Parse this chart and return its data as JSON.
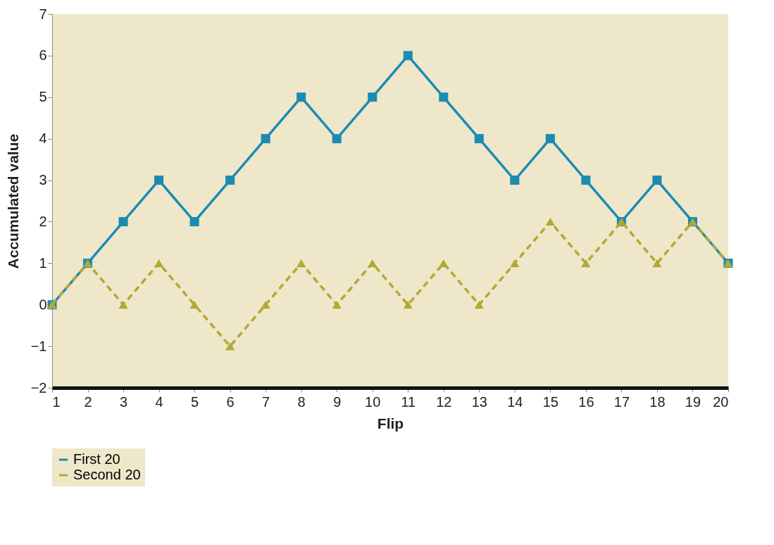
{
  "chart_data": {
    "type": "line",
    "xlabel": "Flip",
    "ylabel": "Accumulated value",
    "x": [
      1,
      2,
      3,
      4,
      5,
      6,
      7,
      8,
      9,
      10,
      11,
      12,
      13,
      14,
      15,
      16,
      17,
      18,
      19,
      20
    ],
    "xlim": [
      1,
      20
    ],
    "xticks": [
      1,
      2,
      3,
      4,
      5,
      6,
      7,
      8,
      9,
      10,
      11,
      12,
      13,
      14,
      15,
      16,
      17,
      18,
      19,
      20
    ],
    "ylim": [
      -2,
      7
    ],
    "yticks": [
      {
        "value": -2,
        "label": "−2"
      },
      {
        "value": -1,
        "label": "−1"
      },
      0,
      1,
      2,
      3,
      4,
      5,
      6,
      7
    ],
    "grid": false,
    "legend": "bottom left",
    "series": [
      {
        "name": "First 20",
        "color": "#1b8bb3",
        "marker": "square",
        "line_style": "solid",
        "values": [
          0,
          1,
          2,
          3,
          2,
          3,
          4,
          5,
          4,
          5,
          6,
          5,
          4,
          3,
          4,
          3,
          2,
          3,
          2,
          1
        ]
      },
      {
        "name": "Second 20",
        "color": "#b3a934",
        "marker": "triangle",
        "line_style": "dashed",
        "values": [
          0,
          1,
          0,
          1,
          0,
          -1,
          0,
          1,
          0,
          1,
          0,
          1,
          0,
          1,
          2,
          1,
          2,
          1,
          2,
          1
        ]
      }
    ]
  }
}
